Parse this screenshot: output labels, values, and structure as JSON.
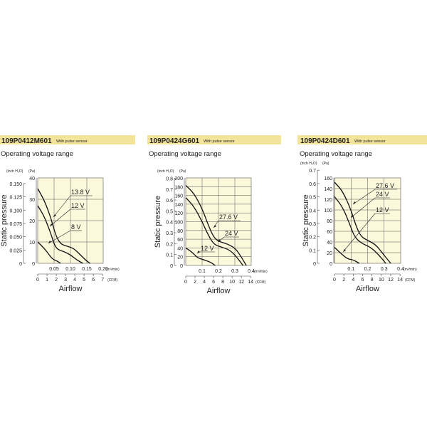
{
  "chart_data": [
    {
      "type": "line",
      "model": "109P0412M601",
      "model_note": "With pulse sensor",
      "title": "Operating voltage range",
      "ylabel": "Static pressure",
      "xlabel": "Airflow",
      "y_units": [
        "(inch H₂O)",
        "(Pa)"
      ],
      "x_units": [
        "(m³/min)",
        "(CFM)"
      ],
      "ylim_pa": [
        0,
        40
      ],
      "yticks_pa": [
        0,
        10,
        20,
        30,
        40
      ],
      "yticks_inch": [
        "0",
        "0.025",
        "0.050",
        "0.075",
        "0.100",
        "0.125",
        "0.150"
      ],
      "xlim_m3min": [
        0,
        0.2
      ],
      "xticks_m3min": [
        "0.05",
        "0.10",
        "0.15",
        "0.20"
      ],
      "xticks_cfm": [
        "0",
        "1",
        "2",
        "3",
        "4",
        "5",
        "6",
        "7"
      ],
      "grid": true,
      "series": [
        {
          "name": "13.8 V",
          "points": [
            [
              0,
              35
            ],
            [
              0.02,
              29.5
            ],
            [
              0.04,
              21.5
            ],
            [
              0.055,
              13
            ],
            [
              0.07,
              9
            ],
            [
              0.09,
              8
            ],
            [
              0.11,
              7
            ],
            [
              0.13,
              4
            ],
            [
              0.15,
              1
            ],
            [
              0.16,
              0
            ]
          ]
        },
        {
          "name": "12 V",
          "points": [
            [
              0,
              27
            ],
            [
              0.02,
              22
            ],
            [
              0.04,
              14
            ],
            [
              0.05,
              9
            ],
            [
              0.06,
              6.5
            ],
            [
              0.08,
              5.5
            ],
            [
              0.1,
              4
            ],
            [
              0.12,
              1.5
            ],
            [
              0.138,
              0
            ]
          ]
        },
        {
          "name": "8 V",
          "points": [
            [
              0,
              10
            ],
            [
              0.02,
              7
            ],
            [
              0.035,
              4
            ],
            [
              0.045,
              2
            ],
            [
              0.06,
              1
            ],
            [
              0.07,
              0
            ]
          ]
        }
      ]
    },
    {
      "type": "line",
      "model": "109P0424G601",
      "model_note": "With pulse sensor",
      "title": "Operating voltage range",
      "ylabel": "Static pressure",
      "xlabel": "Airflow",
      "y_units": [
        "(inch H₂O)",
        "(Pa)"
      ],
      "x_units": [
        "(m³/min)",
        "(CFM)"
      ],
      "ylim_pa": [
        0,
        200
      ],
      "yticks_pa": [
        0,
        20,
        40,
        60,
        80,
        100,
        120,
        140,
        160,
        180,
        200
      ],
      "yticks_inch": [
        "0",
        "0.1",
        "0.2",
        "0.3",
        "0.4",
        "0.5",
        "0.6",
        "0.7",
        "0.8"
      ],
      "xlim_m3min": [
        0,
        0.4
      ],
      "xticks_m3min": [
        "0.1",
        "0.2",
        "0.3",
        "0.4"
      ],
      "xticks_cfm": [
        "0",
        "2",
        "4",
        "6",
        "8",
        "10",
        "12",
        "14"
      ],
      "grid": true,
      "series": [
        {
          "name": "27.6 V",
          "points": [
            [
              0,
              183
            ],
            [
              0.05,
              165
            ],
            [
              0.1,
              130
            ],
            [
              0.14,
              90
            ],
            [
              0.17,
              65
            ],
            [
              0.2,
              55
            ],
            [
              0.25,
              50
            ],
            [
              0.3,
              40
            ],
            [
              0.33,
              25
            ],
            [
              0.37,
              0
            ]
          ]
        },
        {
          "name": "24 V",
          "points": [
            [
              0,
              155
            ],
            [
              0.05,
              135
            ],
            [
              0.1,
              100
            ],
            [
              0.13,
              75
            ],
            [
              0.17,
              48
            ],
            [
              0.22,
              42
            ],
            [
              0.27,
              35
            ],
            [
              0.31,
              20
            ],
            [
              0.35,
              0
            ]
          ]
        },
        {
          "name": "12 V",
          "points": [
            [
              0,
              40
            ],
            [
              0.04,
              30
            ],
            [
              0.07,
              18
            ],
            [
              0.1,
              14
            ],
            [
              0.15,
              8
            ],
            [
              0.18,
              0
            ]
          ]
        }
      ]
    },
    {
      "type": "line",
      "model": "109P0424D601",
      "model_note": "With pulse sensor",
      "title": "Operating voltage range",
      "ylabel": "Static pressure",
      "xlabel": "Airflow",
      "y_units": [
        "(inch H₂O)",
        "(Pa)"
      ],
      "x_units": [
        "(m³/min)",
        "(CFM)"
      ],
      "ylim_pa": [
        0,
        160
      ],
      "yticks_pa": [
        0,
        20,
        40,
        60,
        80,
        100,
        120,
        140,
        160
      ],
      "yticks_inch": [
        "0",
        "0.1",
        "0.2",
        "0.3",
        "0.4",
        "0.5",
        "0.6",
        "0.7"
      ],
      "xlim_m3min": [
        0,
        0.4
      ],
      "xticks_m3min": [
        "0.1",
        "0.2",
        "0.3",
        "0.4"
      ],
      "xticks_cfm": [
        "0",
        "2",
        "4",
        "6",
        "8",
        "10",
        "12",
        "14"
      ],
      "grid": true,
      "series": [
        {
          "name": "27.6 V",
          "points": [
            [
              0,
              152
            ],
            [
              0.05,
              135
            ],
            [
              0.1,
              100
            ],
            [
              0.13,
              70
            ],
            [
              0.16,
              50
            ],
            [
              0.2,
              43
            ],
            [
              0.25,
              35
            ],
            [
              0.3,
              15
            ],
            [
              0.34,
              0
            ]
          ]
        },
        {
          "name": "24 V",
          "points": [
            [
              0,
              125
            ],
            [
              0.05,
              105
            ],
            [
              0.09,
              75
            ],
            [
              0.12,
              50
            ],
            [
              0.16,
              38
            ],
            [
              0.22,
              30
            ],
            [
              0.27,
              15
            ],
            [
              0.31,
              0
            ]
          ]
        },
        {
          "name": "12 V",
          "points": [
            [
              0,
              30
            ],
            [
              0.04,
              18
            ],
            [
              0.08,
              8
            ],
            [
              0.11,
              7
            ],
            [
              0.15,
              0
            ]
          ]
        }
      ]
    }
  ],
  "colors": {
    "header_band": "#f2e49a",
    "plot_bg": "#fbf8dc",
    "grid": "#555555",
    "curve": "#111111"
  }
}
